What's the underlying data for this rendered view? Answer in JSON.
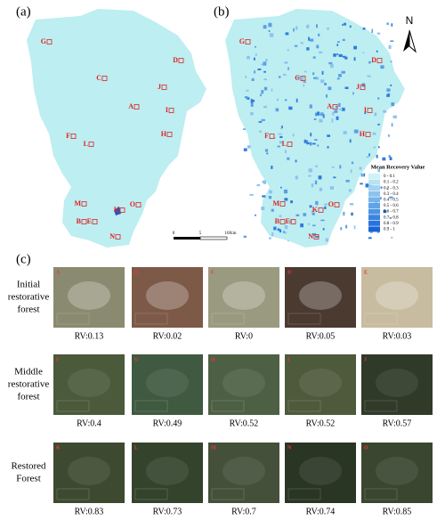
{
  "panels": {
    "a": "(a)",
    "b": "(b)",
    "c": "(c)"
  },
  "map_points": [
    "G",
    "D",
    "C",
    "J",
    "A",
    "I",
    "F",
    "L",
    "H",
    "M",
    "K",
    "O",
    "B",
    "E",
    "N"
  ],
  "north": "N",
  "legend": {
    "title": "Mean Recovery Value",
    "classes": [
      "0 - 0.1",
      "0.1 - 0.2",
      "0.2 - 0.3",
      "0.3 - 0.4",
      "0.4 - 0.5",
      "0.5 - 0.6",
      "0.6 - 0.7",
      "0.7 - 0.8",
      "0.8 - 0.9",
      "0.9 - 1"
    ]
  },
  "scale_bar": {
    "labels": [
      "0",
      "5",
      "10"
    ],
    "unit": "Km"
  },
  "rows": [
    {
      "label": [
        "Initial",
        "restorative",
        "forest"
      ],
      "images": [
        {
          "letter": "A",
          "rv": "RV:0.13"
        },
        {
          "letter": "B",
          "rv": "RV:0.02"
        },
        {
          "letter": "C",
          "rv": "RV:0"
        },
        {
          "letter": "D",
          "rv": "RV:0.05"
        },
        {
          "letter": "E",
          "rv": "RV:0.03"
        }
      ]
    },
    {
      "label": [
        "Middle",
        "restorative",
        "forest"
      ],
      "images": [
        {
          "letter": "F",
          "rv": "RV:0.4"
        },
        {
          "letter": "G",
          "rv": "RV:0.49"
        },
        {
          "letter": "H",
          "rv": "RV:0.52"
        },
        {
          "letter": "I",
          "rv": "RV:0.52"
        },
        {
          "letter": "J",
          "rv": "RV:0.57"
        }
      ]
    },
    {
      "label": [
        "Restored",
        "Forest"
      ],
      "images": [
        {
          "letter": "K",
          "rv": "RV:0.83"
        },
        {
          "letter": "L",
          "rv": "RV:0.73"
        },
        {
          "letter": "M",
          "rv": "RV:0.7"
        },
        {
          "letter": "N",
          "rv": "RV:0.74"
        },
        {
          "letter": "O",
          "rv": "RV:0.85"
        }
      ]
    }
  ]
}
